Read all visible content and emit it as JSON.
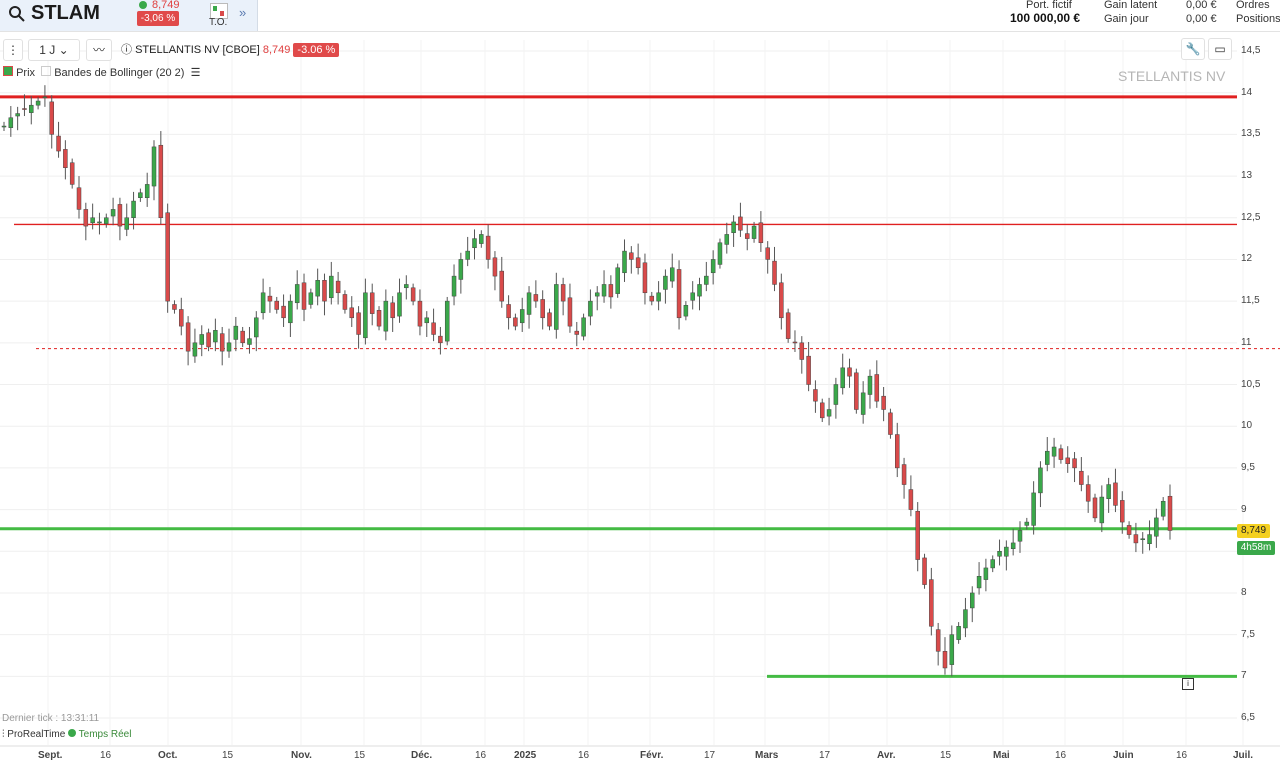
{
  "header": {
    "symbol": "STLAM",
    "last_price": "8,749",
    "change": "-3,06 %",
    "to_label": "T.O.",
    "account": {
      "port_label": "Port. fictif",
      "port_value": "100 000,00 €",
      "latent_label": "Gain latent",
      "latent_value": "0,00 €",
      "day_label": "Gain jour",
      "day_value": "0,00 €",
      "orders_label": "Ordres",
      "positions_label": "Positions"
    }
  },
  "toolbar": {
    "interval": "1 J",
    "instrument": "STELLANTIS NV [CBOE]",
    "price": "8,749",
    "change": "-3.06 %"
  },
  "legend": {
    "price_label": "Prix",
    "bollinger_label": "Bandes de Bollinger (20 2)"
  },
  "watermark": "STELLANTIS NV",
  "price_tag": "8,749",
  "time_tag": "4h58m",
  "footer": {
    "last_tick": "Dernier tick : 13:31:11",
    "brand": "ProRealTime",
    "realtime": "Temps Réel"
  },
  "colors": {
    "up": "#3aa84a",
    "down": "#d94a4a",
    "resistance": "#e02020",
    "support": "#44bb44"
  },
  "chart_data": {
    "type": "candlestick",
    "y_ticks": [
      "14,5",
      "14",
      "13,5",
      "13",
      "12,5",
      "12",
      "11,5",
      "11",
      "10,5",
      "10",
      "9,5",
      "9",
      "8,5",
      "8",
      "7,5",
      "7",
      "6,5"
    ],
    "x_ticks": [
      {
        "label": "Sept.",
        "bold": true
      },
      {
        "label": "16",
        "bold": false
      },
      {
        "label": "Oct.",
        "bold": true
      },
      {
        "label": "15",
        "bold": false
      },
      {
        "label": "Nov.",
        "bold": true
      },
      {
        "label": "15",
        "bold": false
      },
      {
        "label": "Déc.",
        "bold": true
      },
      {
        "label": "16",
        "bold": false
      },
      {
        "label": "2025",
        "bold": true
      },
      {
        "label": "16",
        "bold": false
      },
      {
        "label": "Févr.",
        "bold": true
      },
      {
        "label": "17",
        "bold": false
      },
      {
        "label": "Mars",
        "bold": true
      },
      {
        "label": "17",
        "bold": false
      },
      {
        "label": "Avr.",
        "bold": true
      },
      {
        "label": "15",
        "bold": false
      },
      {
        "label": "Mai",
        "bold": true
      },
      {
        "label": "16",
        "bold": false
      },
      {
        "label": "Juin",
        "bold": true
      },
      {
        "label": "16",
        "bold": false
      },
      {
        "label": "Juil.",
        "bold": true
      }
    ],
    "horizontal_lines": [
      {
        "price": 13.95,
        "style": "solid-thick",
        "color": "red"
      },
      {
        "price": 12.42,
        "style": "solid",
        "color": "red"
      },
      {
        "price": 10.93,
        "style": "dashed",
        "color": "red"
      },
      {
        "price": 8.77,
        "style": "solid-thick",
        "color": "green"
      },
      {
        "price": 7.0,
        "style": "solid",
        "color": "green"
      }
    ],
    "ylim": [
      6.3,
      14.8
    ],
    "closes": [
      13.6,
      13.7,
      13.75,
      13.8,
      13.85,
      13.9,
      13.95,
      13.5,
      13.3,
      13.1,
      12.9,
      12.6,
      12.4,
      12.5,
      12.45,
      12.5,
      12.6,
      12.4,
      12.5,
      12.7,
      12.8,
      12.9,
      13.35,
      12.5,
      11.5,
      11.4,
      11.2,
      10.9,
      11.0,
      11.1,
      10.95,
      11.15,
      10.9,
      11.0,
      11.2,
      11.0,
      11.05,
      11.3,
      11.6,
      11.5,
      11.4,
      11.3,
      11.5,
      11.7,
      11.4,
      11.6,
      11.75,
      11.5,
      11.8,
      11.6,
      11.4,
      11.3,
      11.1,
      11.6,
      11.35,
      11.2,
      11.5,
      11.3,
      11.6,
      11.7,
      11.5,
      11.2,
      11.3,
      11.1,
      11.0,
      11.5,
      11.8,
      12.0,
      12.1,
      12.25,
      12.3,
      12.0,
      11.8,
      11.5,
      11.3,
      11.2,
      11.4,
      11.6,
      11.5,
      11.3,
      11.2,
      11.7,
      11.5,
      11.2,
      11.1,
      11.3,
      11.5,
      11.6,
      11.7,
      11.55,
      11.9,
      12.1,
      12.0,
      11.9,
      11.6,
      11.5,
      11.6,
      11.8,
      11.9,
      11.3,
      11.45,
      11.6,
      11.7,
      11.8,
      12.0,
      12.2,
      12.3,
      12.45,
      12.35,
      12.25,
      12.4,
      12.2,
      12.0,
      11.7,
      11.3,
      11.05,
      11.0,
      10.8,
      10.5,
      10.3,
      10.1,
      10.2,
      10.5,
      10.7,
      10.6,
      10.2,
      10.4,
      10.6,
      10.3,
      10.2,
      9.9,
      9.5,
      9.3,
      9.0,
      8.4,
      8.1,
      7.6,
      7.3,
      7.1,
      7.5,
      7.6,
      7.8,
      8.0,
      8.2,
      8.3,
      8.4,
      8.5,
      8.55,
      8.6,
      8.75,
      8.85,
      9.2,
      9.5,
      9.7,
      9.75,
      9.6,
      9.55,
      9.5,
      9.3,
      9.1,
      8.9,
      9.15,
      9.3,
      9.05,
      8.85,
      8.7,
      8.6,
      8.65,
      8.7,
      8.9,
      9.1,
      8.749
    ]
  }
}
